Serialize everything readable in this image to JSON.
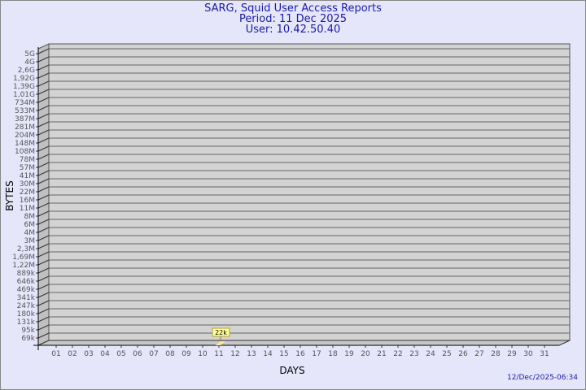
{
  "header": {
    "title": "SARG, Squid User Access Reports",
    "period": "Period: 11 Dec 2025",
    "user": "User: 10.42.50.40"
  },
  "timestamp": "12/Dec/2025-06:34",
  "colors": {
    "background": "#e6e6fa",
    "title": "#1a1aa6",
    "wall": "#d3d3d3",
    "bar": "#ffe890",
    "label_bg": "#ffff99"
  },
  "chart_data": {
    "type": "bar",
    "xlabel": "DAYS",
    "ylabel": "BYTES",
    "y_scale": "log",
    "yticks": [
      "5G",
      "4G",
      "2,6G",
      "1,92G",
      "1,39G",
      "1,01G",
      "734M",
      "533M",
      "387M",
      "281M",
      "204M",
      "148M",
      "108M",
      "78M",
      "57M",
      "41M",
      "30M",
      "22M",
      "16M",
      "11M",
      "8M",
      "6M",
      "4M",
      "3M",
      "2,3M",
      "1,69M",
      "1,22M",
      "889k",
      "646k",
      "469k",
      "341k",
      "247k",
      "180k",
      "131k",
      "95k",
      "69k"
    ],
    "categories": [
      "01",
      "02",
      "03",
      "04",
      "05",
      "06",
      "07",
      "08",
      "09",
      "10",
      "11",
      "12",
      "13",
      "14",
      "15",
      "16",
      "17",
      "18",
      "19",
      "20",
      "21",
      "22",
      "23",
      "24",
      "25",
      "26",
      "27",
      "28",
      "29",
      "30",
      "31"
    ],
    "values": [
      null,
      null,
      null,
      null,
      null,
      null,
      null,
      null,
      null,
      null,
      22000,
      null,
      null,
      null,
      null,
      null,
      null,
      null,
      null,
      null,
      null,
      null,
      null,
      null,
      null,
      null,
      null,
      null,
      null,
      null,
      null
    ],
    "data_labels": {
      "11": "22k"
    },
    "grid": true
  }
}
